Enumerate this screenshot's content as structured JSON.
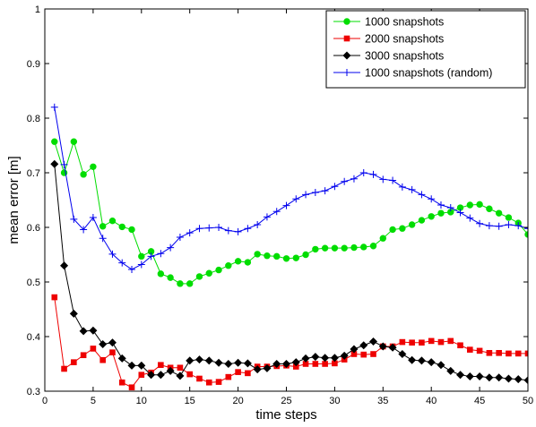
{
  "chart_data": {
    "type": "line",
    "xlabel": "time steps",
    "ylabel": "mean error [m]",
    "xlim": [
      0,
      50
    ],
    "ylim": [
      0.3,
      1.0
    ],
    "xticks": [
      0,
      5,
      10,
      15,
      20,
      25,
      30,
      35,
      40,
      45,
      50
    ],
    "yticks": [
      0.3,
      0.4,
      0.5,
      0.6,
      0.7,
      0.8,
      0.9,
      1
    ],
    "ytick_labels": [
      "0.3",
      "0.4",
      "0.5",
      "0.6",
      "0.7",
      "0.8",
      "0.9",
      "1"
    ],
    "grid": false,
    "legend_position": "top-right",
    "x": [
      1,
      2,
      3,
      4,
      5,
      6,
      7,
      8,
      9,
      10,
      11,
      12,
      13,
      14,
      15,
      16,
      17,
      18,
      19,
      20,
      21,
      22,
      23,
      24,
      25,
      26,
      27,
      28,
      29,
      30,
      31,
      32,
      33,
      34,
      35,
      36,
      37,
      38,
      39,
      40,
      41,
      42,
      43,
      44,
      45,
      46,
      47,
      48,
      49,
      50
    ],
    "series": [
      {
        "name": "1000 snapshots",
        "color": "#00dd00",
        "marker": "circle",
        "values": [
          0.757,
          0.7,
          0.757,
          0.697,
          0.711,
          0.602,
          0.612,
          0.601,
          0.596,
          0.547,
          0.556,
          0.515,
          0.508,
          0.497,
          0.497,
          0.51,
          0.516,
          0.522,
          0.53,
          0.538,
          0.536,
          0.551,
          0.548,
          0.547,
          0.543,
          0.544,
          0.55,
          0.56,
          0.562,
          0.562,
          0.562,
          0.563,
          0.564,
          0.566,
          0.58,
          0.596,
          0.598,
          0.605,
          0.613,
          0.62,
          0.626,
          0.628,
          0.636,
          0.641,
          0.642,
          0.634,
          0.626,
          0.618,
          0.608,
          0.587
        ]
      },
      {
        "name": "2000 snapshots",
        "color": "#ee0000",
        "marker": "square",
        "values": [
          0.472,
          0.341,
          0.353,
          0.366,
          0.378,
          0.357,
          0.371,
          0.316,
          0.307,
          0.33,
          0.334,
          0.348,
          0.343,
          0.343,
          0.331,
          0.323,
          0.316,
          0.317,
          0.326,
          0.335,
          0.333,
          0.345,
          0.345,
          0.346,
          0.347,
          0.345,
          0.35,
          0.35,
          0.35,
          0.351,
          0.358,
          0.368,
          0.367,
          0.368,
          0.382,
          0.382,
          0.39,
          0.389,
          0.389,
          0.392,
          0.39,
          0.392,
          0.384,
          0.376,
          0.374,
          0.37,
          0.37,
          0.369,
          0.369,
          0.369
        ]
      },
      {
        "name": "3000 snapshots",
        "color": "#000000",
        "marker": "diamond",
        "values": [
          0.716,
          0.53,
          0.442,
          0.41,
          0.411,
          0.386,
          0.389,
          0.36,
          0.347,
          0.347,
          0.33,
          0.33,
          0.337,
          0.328,
          0.356,
          0.358,
          0.356,
          0.352,
          0.35,
          0.352,
          0.351,
          0.34,
          0.342,
          0.35,
          0.35,
          0.353,
          0.36,
          0.363,
          0.361,
          0.361,
          0.365,
          0.377,
          0.384,
          0.391,
          0.382,
          0.38,
          0.368,
          0.357,
          0.356,
          0.353,
          0.348,
          0.337,
          0.33,
          0.327,
          0.327,
          0.325,
          0.325,
          0.323,
          0.322,
          0.32
        ]
      },
      {
        "name": "1000 snapshots (random)",
        "color": "#0000ee",
        "marker": "plus",
        "values": [
          0.82,
          0.715,
          0.615,
          0.596,
          0.618,
          0.58,
          0.551,
          0.535,
          0.523,
          0.532,
          0.547,
          0.552,
          0.563,
          0.582,
          0.59,
          0.598,
          0.599,
          0.6,
          0.594,
          0.592,
          0.598,
          0.605,
          0.619,
          0.629,
          0.64,
          0.652,
          0.66,
          0.664,
          0.667,
          0.675,
          0.684,
          0.689,
          0.7,
          0.697,
          0.688,
          0.686,
          0.674,
          0.669,
          0.66,
          0.652,
          0.641,
          0.636,
          0.627,
          0.617,
          0.607,
          0.603,
          0.602,
          0.605,
          0.603,
          0.598
        ]
      }
    ]
  }
}
